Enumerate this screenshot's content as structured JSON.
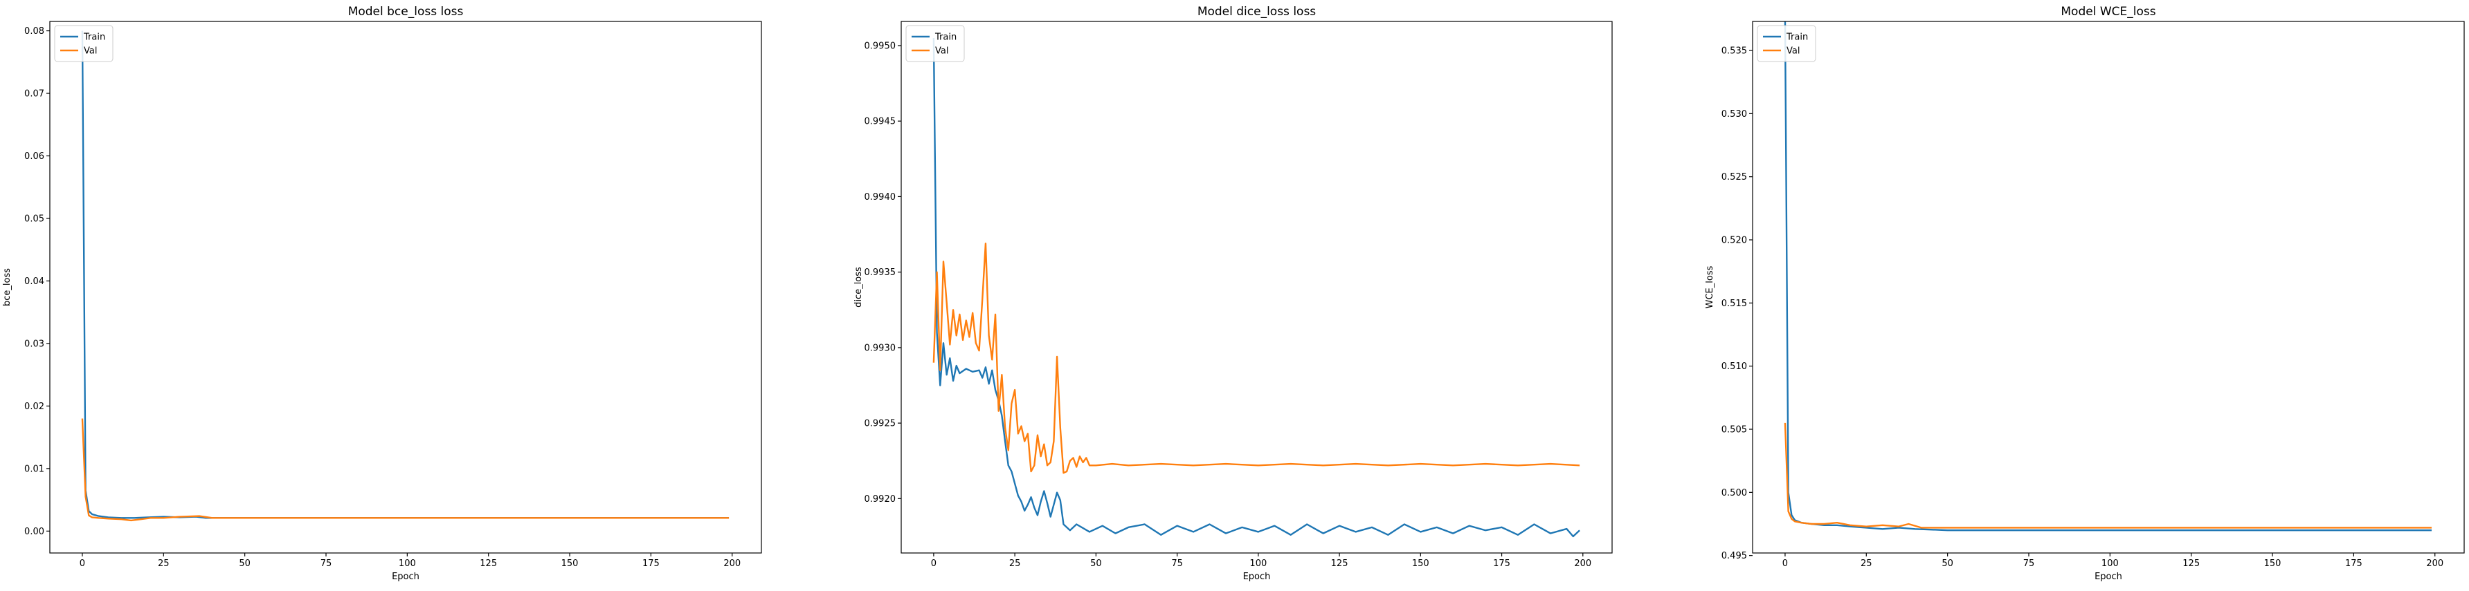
{
  "colors": {
    "train": "#1f77b4",
    "val": "#ff7f0e"
  },
  "chart_data": [
    {
      "type": "line",
      "title": "Model bce_loss loss",
      "xlabel": "Epoch",
      "ylabel": "bce_loss",
      "xlim": [
        -10,
        209
      ],
      "ylim": [
        -0.0035,
        0.0815
      ],
      "xticks": [
        0,
        25,
        50,
        75,
        100,
        125,
        150,
        175,
        200
      ],
      "xtick_labels": [
        "0",
        "25",
        "50",
        "75",
        "100",
        "125",
        "150",
        "175",
        "200"
      ],
      "yticks": [
        0.0,
        0.01,
        0.02,
        0.03,
        0.04,
        0.05,
        0.06,
        0.07,
        0.08
      ],
      "ytick_labels": [
        "0.00",
        "0.01",
        "0.02",
        "0.03",
        "0.04",
        "0.05",
        "0.06",
        "0.07",
        "0.08"
      ],
      "legend": "top-left",
      "grid": false,
      "series": [
        {
          "name": "Train",
          "color": "#1f77b4",
          "points": [
            [
              0,
              0.08
            ],
            [
              1,
              0.0065
            ],
            [
              2,
              0.0032
            ],
            [
              3,
              0.0027
            ],
            [
              5,
              0.0024
            ],
            [
              8,
              0.0022
            ],
            [
              12,
              0.0021
            ],
            [
              16,
              0.0021
            ],
            [
              20,
              0.0022
            ],
            [
              25,
              0.0023
            ],
            [
              30,
              0.0022
            ],
            [
              35,
              0.0023
            ],
            [
              38,
              0.0021
            ],
            [
              45,
              0.0021
            ],
            [
              60,
              0.0021
            ],
            [
              80,
              0.0021
            ],
            [
              100,
              0.0021
            ],
            [
              125,
              0.0021
            ],
            [
              150,
              0.0021
            ],
            [
              175,
              0.0021
            ],
            [
              199,
              0.0021
            ]
          ]
        },
        {
          "name": "Val",
          "color": "#ff7f0e",
          "points": [
            [
              0,
              0.018
            ],
            [
              1,
              0.0055
            ],
            [
              2,
              0.0025
            ],
            [
              3,
              0.0022
            ],
            [
              5,
              0.0021
            ],
            [
              8,
              0.002
            ],
            [
              12,
              0.0019
            ],
            [
              15,
              0.0017
            ],
            [
              18,
              0.0019
            ],
            [
              21,
              0.0021
            ],
            [
              25,
              0.0021
            ],
            [
              30,
              0.0023
            ],
            [
              36,
              0.0024
            ],
            [
              40,
              0.0021
            ],
            [
              50,
              0.0021
            ],
            [
              75,
              0.0021
            ],
            [
              100,
              0.0021
            ],
            [
              125,
              0.0021
            ],
            [
              150,
              0.0021
            ],
            [
              175,
              0.0021
            ],
            [
              199,
              0.0021
            ]
          ]
        }
      ]
    },
    {
      "type": "line",
      "title": "Model dice_loss loss",
      "xlabel": "Epoch",
      "ylabel": "dice_loss",
      "xlim": [
        -10,
        209
      ],
      "ylim": [
        0.99164,
        0.99516
      ],
      "xticks": [
        0,
        25,
        50,
        75,
        100,
        125,
        150,
        175,
        200
      ],
      "xtick_labels": [
        "0",
        "25",
        "50",
        "75",
        "100",
        "125",
        "150",
        "175",
        "200"
      ],
      "yticks": [
        0.992,
        0.9925,
        0.993,
        0.9935,
        0.994,
        0.9945,
        0.995
      ],
      "ytick_labels": [
        "0.9920",
        "0.9925",
        "0.9930",
        "0.9935",
        "0.9940",
        "0.9945",
        "0.9950"
      ],
      "legend": "top-left",
      "grid": false,
      "series": [
        {
          "name": "Train",
          "color": "#1f77b4",
          "points": [
            [
              0,
              0.99505
            ],
            [
              1,
              0.9931
            ],
            [
              2,
              0.99275
            ],
            [
              3,
              0.99303
            ],
            [
              4,
              0.99282
            ],
            [
              5,
              0.99293
            ],
            [
              6,
              0.99278
            ],
            [
              7,
              0.99288
            ],
            [
              8,
              0.99283
            ],
            [
              10,
              0.99286
            ],
            [
              12,
              0.99284
            ],
            [
              14,
              0.99285
            ],
            [
              15,
              0.9928
            ],
            [
              16,
              0.99287
            ],
            [
              17,
              0.99276
            ],
            [
              18,
              0.99285
            ],
            [
              19,
              0.99272
            ],
            [
              20,
              0.99265
            ],
            [
              21,
              0.99255
            ],
            [
              22,
              0.99238
            ],
            [
              23,
              0.99222
            ],
            [
              24,
              0.99218
            ],
            [
              25,
              0.9921
            ],
            [
              26,
              0.99202
            ],
            [
              27,
              0.99198
            ],
            [
              28,
              0.99192
            ],
            [
              29,
              0.99196
            ],
            [
              30,
              0.99201
            ],
            [
              31,
              0.99194
            ],
            [
              32,
              0.99189
            ],
            [
              33,
              0.99198
            ],
            [
              34,
              0.99205
            ],
            [
              35,
              0.99197
            ],
            [
              36,
              0.99188
            ],
            [
              37,
              0.99196
            ],
            [
              38,
              0.99204
            ],
            [
              39,
              0.99199
            ],
            [
              40,
              0.99183
            ],
            [
              42,
              0.99179
            ],
            [
              44,
              0.99183
            ],
            [
              48,
              0.99178
            ],
            [
              52,
              0.99182
            ],
            [
              56,
              0.99177
            ],
            [
              60,
              0.99181
            ],
            [
              65,
              0.99183
            ],
            [
              70,
              0.99176
            ],
            [
              75,
              0.99182
            ],
            [
              80,
              0.99178
            ],
            [
              85,
              0.99183
            ],
            [
              90,
              0.99177
            ],
            [
              95,
              0.99181
            ],
            [
              100,
              0.99178
            ],
            [
              105,
              0.99182
            ],
            [
              110,
              0.99176
            ],
            [
              115,
              0.99183
            ],
            [
              120,
              0.99177
            ],
            [
              125,
              0.99182
            ],
            [
              130,
              0.99178
            ],
            [
              135,
              0.99181
            ],
            [
              140,
              0.99176
            ],
            [
              145,
              0.99183
            ],
            [
              150,
              0.99178
            ],
            [
              155,
              0.99181
            ],
            [
              160,
              0.99177
            ],
            [
              165,
              0.99182
            ],
            [
              170,
              0.99179
            ],
            [
              175,
              0.99181
            ],
            [
              180,
              0.99176
            ],
            [
              185,
              0.99183
            ],
            [
              190,
              0.99177
            ],
            [
              195,
              0.9918
            ],
            [
              197,
              0.99175
            ],
            [
              199,
              0.99179
            ]
          ]
        },
        {
          "name": "Val",
          "color": "#ff7f0e",
          "points": [
            [
              0,
              0.9929
            ],
            [
              1,
              0.9935
            ],
            [
              2,
              0.99285
            ],
            [
              3,
              0.99357
            ],
            [
              4,
              0.9933
            ],
            [
              5,
              0.99302
            ],
            [
              6,
              0.99325
            ],
            [
              7,
              0.99308
            ],
            [
              8,
              0.99322
            ],
            [
              9,
              0.99305
            ],
            [
              10,
              0.99318
            ],
            [
              11,
              0.99307
            ],
            [
              12,
              0.99323
            ],
            [
              13,
              0.99303
            ],
            [
              14,
              0.99298
            ],
            [
              15,
              0.99332
            ],
            [
              16,
              0.99369
            ],
            [
              17,
              0.99308
            ],
            [
              18,
              0.99292
            ],
            [
              19,
              0.99322
            ],
            [
              20,
              0.99258
            ],
            [
              21,
              0.99282
            ],
            [
              22,
              0.99247
            ],
            [
              23,
              0.99232
            ],
            [
              24,
              0.99263
            ],
            [
              25,
              0.99272
            ],
            [
              26,
              0.99243
            ],
            [
              27,
              0.99248
            ],
            [
              28,
              0.99238
            ],
            [
              29,
              0.99243
            ],
            [
              30,
              0.99218
            ],
            [
              31,
              0.99222
            ],
            [
              32,
              0.99242
            ],
            [
              33,
              0.99228
            ],
            [
              34,
              0.99236
            ],
            [
              35,
              0.99222
            ],
            [
              36,
              0.99224
            ],
            [
              37,
              0.99238
            ],
            [
              38,
              0.99294
            ],
            [
              39,
              0.99247
            ],
            [
              40,
              0.99217
            ],
            [
              41,
              0.99218
            ],
            [
              42,
              0.99225
            ],
            [
              43,
              0.99227
            ],
            [
              44,
              0.99221
            ],
            [
              45,
              0.99228
            ],
            [
              46,
              0.99224
            ],
            [
              47,
              0.99227
            ],
            [
              48,
              0.99222
            ],
            [
              50,
              0.99222
            ],
            [
              55,
              0.99223
            ],
            [
              60,
              0.99222
            ],
            [
              70,
              0.99223
            ],
            [
              80,
              0.99222
            ],
            [
              90,
              0.99223
            ],
            [
              100,
              0.99222
            ],
            [
              110,
              0.99223
            ],
            [
              120,
              0.99222
            ],
            [
              130,
              0.99223
            ],
            [
              140,
              0.99222
            ],
            [
              150,
              0.99223
            ],
            [
              160,
              0.99222
            ],
            [
              170,
              0.99223
            ],
            [
              180,
              0.99222
            ],
            [
              190,
              0.99223
            ],
            [
              199,
              0.99222
            ]
          ]
        }
      ]
    },
    {
      "type": "line",
      "title": "Model WCE_loss",
      "xlabel": "Epoch",
      "ylabel": "WCE_loss",
      "xlim": [
        -10,
        209
      ],
      "ylim": [
        0.4952,
        0.5373
      ],
      "xticks": [
        0,
        25,
        50,
        75,
        100,
        125,
        150,
        175,
        200
      ],
      "xtick_labels": [
        "0",
        "25",
        "50",
        "75",
        "100",
        "125",
        "150",
        "175",
        "200"
      ],
      "yticks": [
        0.495,
        0.5,
        0.505,
        0.51,
        0.515,
        0.52,
        0.525,
        0.53,
        0.535
      ],
      "ytick_labels": [
        "0.495",
        "0.500",
        "0.505",
        "0.510",
        "0.515",
        "0.520",
        "0.525",
        "0.530",
        "0.535"
      ],
      "legend": "top-left",
      "grid": false,
      "series": [
        {
          "name": "Train",
          "color": "#1f77b4",
          "points": [
            [
              0,
              0.5375
            ],
            [
              1,
              0.5
            ],
            [
              2,
              0.4982
            ],
            [
              3,
              0.4978
            ],
            [
              5,
              0.4976
            ],
            [
              8,
              0.4975
            ],
            [
              12,
              0.4974
            ],
            [
              16,
              0.4974
            ],
            [
              20,
              0.4973
            ],
            [
              25,
              0.4972
            ],
            [
              30,
              0.4971
            ],
            [
              35,
              0.4972
            ],
            [
              40,
              0.4971
            ],
            [
              50,
              0.497
            ],
            [
              75,
              0.497
            ],
            [
              100,
              0.497
            ],
            [
              125,
              0.497
            ],
            [
              150,
              0.497
            ],
            [
              175,
              0.497
            ],
            [
              199,
              0.497
            ]
          ]
        },
        {
          "name": "Val",
          "color": "#ff7f0e",
          "points": [
            [
              0,
              0.5055
            ],
            [
              1,
              0.4985
            ],
            [
              2,
              0.4979
            ],
            [
              3,
              0.4977
            ],
            [
              5,
              0.4976
            ],
            [
              8,
              0.4975
            ],
            [
              12,
              0.4975
            ],
            [
              16,
              0.4976
            ],
            [
              20,
              0.4974
            ],
            [
              25,
              0.4973
            ],
            [
              30,
              0.4974
            ],
            [
              35,
              0.4973
            ],
            [
              38,
              0.4975
            ],
            [
              42,
              0.4972
            ],
            [
              50,
              0.4972
            ],
            [
              75,
              0.4972
            ],
            [
              100,
              0.4972
            ],
            [
              125,
              0.4972
            ],
            [
              150,
              0.4972
            ],
            [
              175,
              0.4972
            ],
            [
              199,
              0.4972
            ]
          ]
        }
      ]
    }
  ]
}
